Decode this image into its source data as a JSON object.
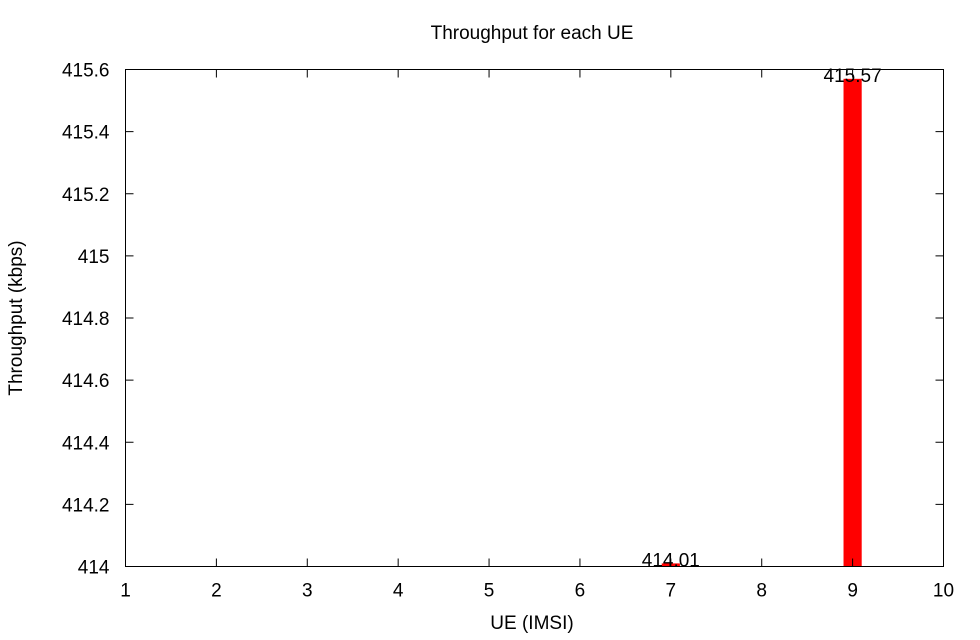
{
  "chart_data": {
    "type": "bar",
    "title": "Throughput for each UE",
    "xlabel": "UE (IMSI)",
    "ylabel": "Throughput (kbps)",
    "xlim": [
      1,
      10
    ],
    "ylim": [
      414,
      415.6
    ],
    "xticks": [
      1,
      2,
      3,
      4,
      5,
      6,
      7,
      8,
      9,
      10
    ],
    "xtick_labels": [
      "1",
      "2",
      "3",
      "4",
      "5",
      "6",
      "7",
      "8",
      "9",
      "10"
    ],
    "yticks": [
      414,
      414.2,
      414.4,
      414.6,
      414.8,
      415,
      415.2,
      415.4,
      415.6
    ],
    "ytick_labels": [
      "414",
      "414.2",
      "414.4",
      "414.6",
      "414.8",
      "415",
      "415.2",
      "415.4",
      "415.6"
    ],
    "x": [
      7,
      9
    ],
    "values": [
      414.01,
      415.57
    ],
    "data_labels": [
      "414.01",
      "415.57"
    ],
    "bar_width": 0.2,
    "bar_color": "#ff0000",
    "grid": false,
    "legend": "none"
  }
}
